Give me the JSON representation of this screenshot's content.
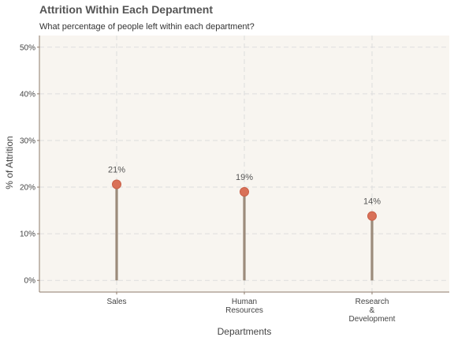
{
  "chart_data": {
    "type": "lollipop",
    "title": "Attrition Within Each Department",
    "subtitle": "What percentage of people left within each department?",
    "xlabel": "Departments",
    "ylabel": "% of Attrition",
    "categories": [
      [
        "Sales"
      ],
      [
        "Human",
        "Resources"
      ],
      [
        "Research",
        "&",
        "Development"
      ]
    ],
    "values": [
      20.6,
      19.0,
      13.8
    ],
    "data_labels": [
      "21%",
      "19%",
      "14%"
    ],
    "yticks": [
      0,
      10,
      20,
      30,
      40,
      50
    ],
    "ytick_labels": [
      "0%",
      "10%",
      "20%",
      "30%",
      "40%",
      "50%"
    ],
    "ylim": [
      -2.5,
      52.5
    ],
    "grid": true,
    "colors": {
      "panel_background": "#f8f5f0",
      "grid": "#dddddd",
      "stem": "#9c8b7b",
      "point": "#d97158",
      "axis": "#8c7a6a"
    }
  }
}
